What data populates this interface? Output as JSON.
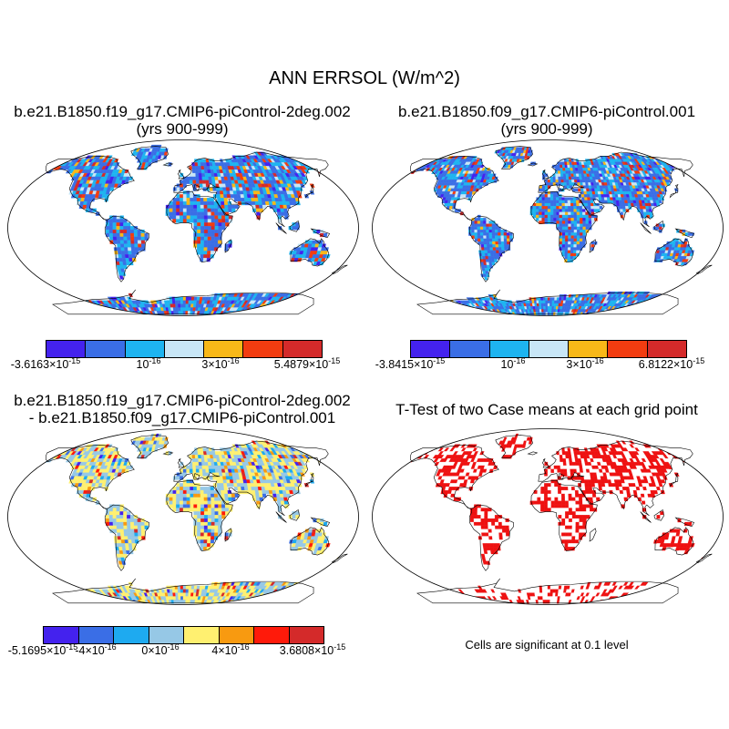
{
  "main_title": "ANN ERRSOL (W/m^2)",
  "panels": [
    {
      "title_line1": "b.e21.B1850.f19_g17.CMIP6-piControl-2deg.002",
      "title_line2": "(yrs 900-999)",
      "colorbar": {
        "colors": [
          "#4422ee",
          "#3a6ee6",
          "#1eb4f0",
          "#c8e6f6",
          "#f8b818",
          "#f23c10",
          "#d42a2a"
        ],
        "labels": [
          {
            "mant": "-3.6163",
            "exp": "-15"
          },
          {
            "mant": "",
            "exp": "-16"
          },
          {
            "mant": "3",
            "exp": "-16"
          },
          {
            "mant": "5.4879",
            "exp": "-15"
          }
        ]
      }
    },
    {
      "title_line1": "b.e21.B1850.f09_g17.CMIP6-piControl.001",
      "title_line2": "(yrs 900-999)",
      "colorbar": {
        "colors": [
          "#4422ee",
          "#3a6ee6",
          "#1eb4f0",
          "#c8e6f6",
          "#f8b818",
          "#f23c10",
          "#d42a2a"
        ],
        "labels": [
          {
            "mant": "-3.8415",
            "exp": "-15"
          },
          {
            "mant": "",
            "exp": "-16"
          },
          {
            "mant": "3",
            "exp": "-16"
          },
          {
            "mant": "6.8122",
            "exp": "-15"
          }
        ]
      }
    },
    {
      "title_line1": "b.e21.B1850.f19_g17.CMIP6-piControl-2deg.002",
      "title_line2": "- b.e21.B1850.f09_g17.CMIP6-piControl.001",
      "colorbar": {
        "colors": [
          "#4422ee",
          "#3a6ee6",
          "#1eaaf0",
          "#96c8e6",
          "#fff070",
          "#f89a10",
          "#ff1a0a",
          "#d42a2a"
        ],
        "labels": [
          {
            "mant": "-5.1695",
            "exp": "-15"
          },
          {
            "mant": "-4",
            "exp": "-16"
          },
          {
            "mant": "0",
            "exp": "-16"
          },
          {
            "mant": "4",
            "exp": "-16"
          },
          {
            "mant": "3.6808",
            "exp": "-15"
          }
        ]
      }
    },
    {
      "title_line1": "T-Test of two Case means at each grid point",
      "title_line2": "",
      "note": "Cells are significant at 0.1 level"
    }
  ]
}
